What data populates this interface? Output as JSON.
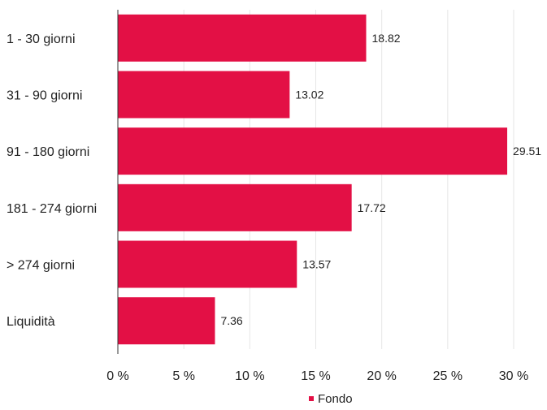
{
  "chart_data": {
    "type": "bar",
    "orientation": "horizontal",
    "categories": [
      "1 - 30 giorni",
      "31 - 90 giorni",
      "91 - 180 giorni",
      "181 - 274 giorni",
      "> 274 giorni",
      "Liquidità"
    ],
    "series": [
      {
        "name": "Fondo",
        "values": [
          18.82,
          13.02,
          29.51,
          17.72,
          13.57,
          7.36
        ],
        "color": "#E31045"
      }
    ],
    "value_labels": [
      "18.82",
      "13.02",
      "29.51",
      "17.72",
      "13.57",
      "7.36"
    ],
    "x_ticks": [
      0,
      5,
      10,
      15,
      20,
      25,
      30
    ],
    "x_tick_labels": [
      "0 %",
      "5 %",
      "10 %",
      "15 %",
      "20 %",
      "25 %",
      "30 %"
    ],
    "xlim": [
      0,
      30
    ],
    "grid": "vertical",
    "legend": {
      "position": "bottom",
      "label": "Fondo"
    },
    "colors": {
      "bar": "#E31045",
      "grid": "#e6e6e6",
      "axis": "#333333",
      "text": "#222222"
    }
  }
}
